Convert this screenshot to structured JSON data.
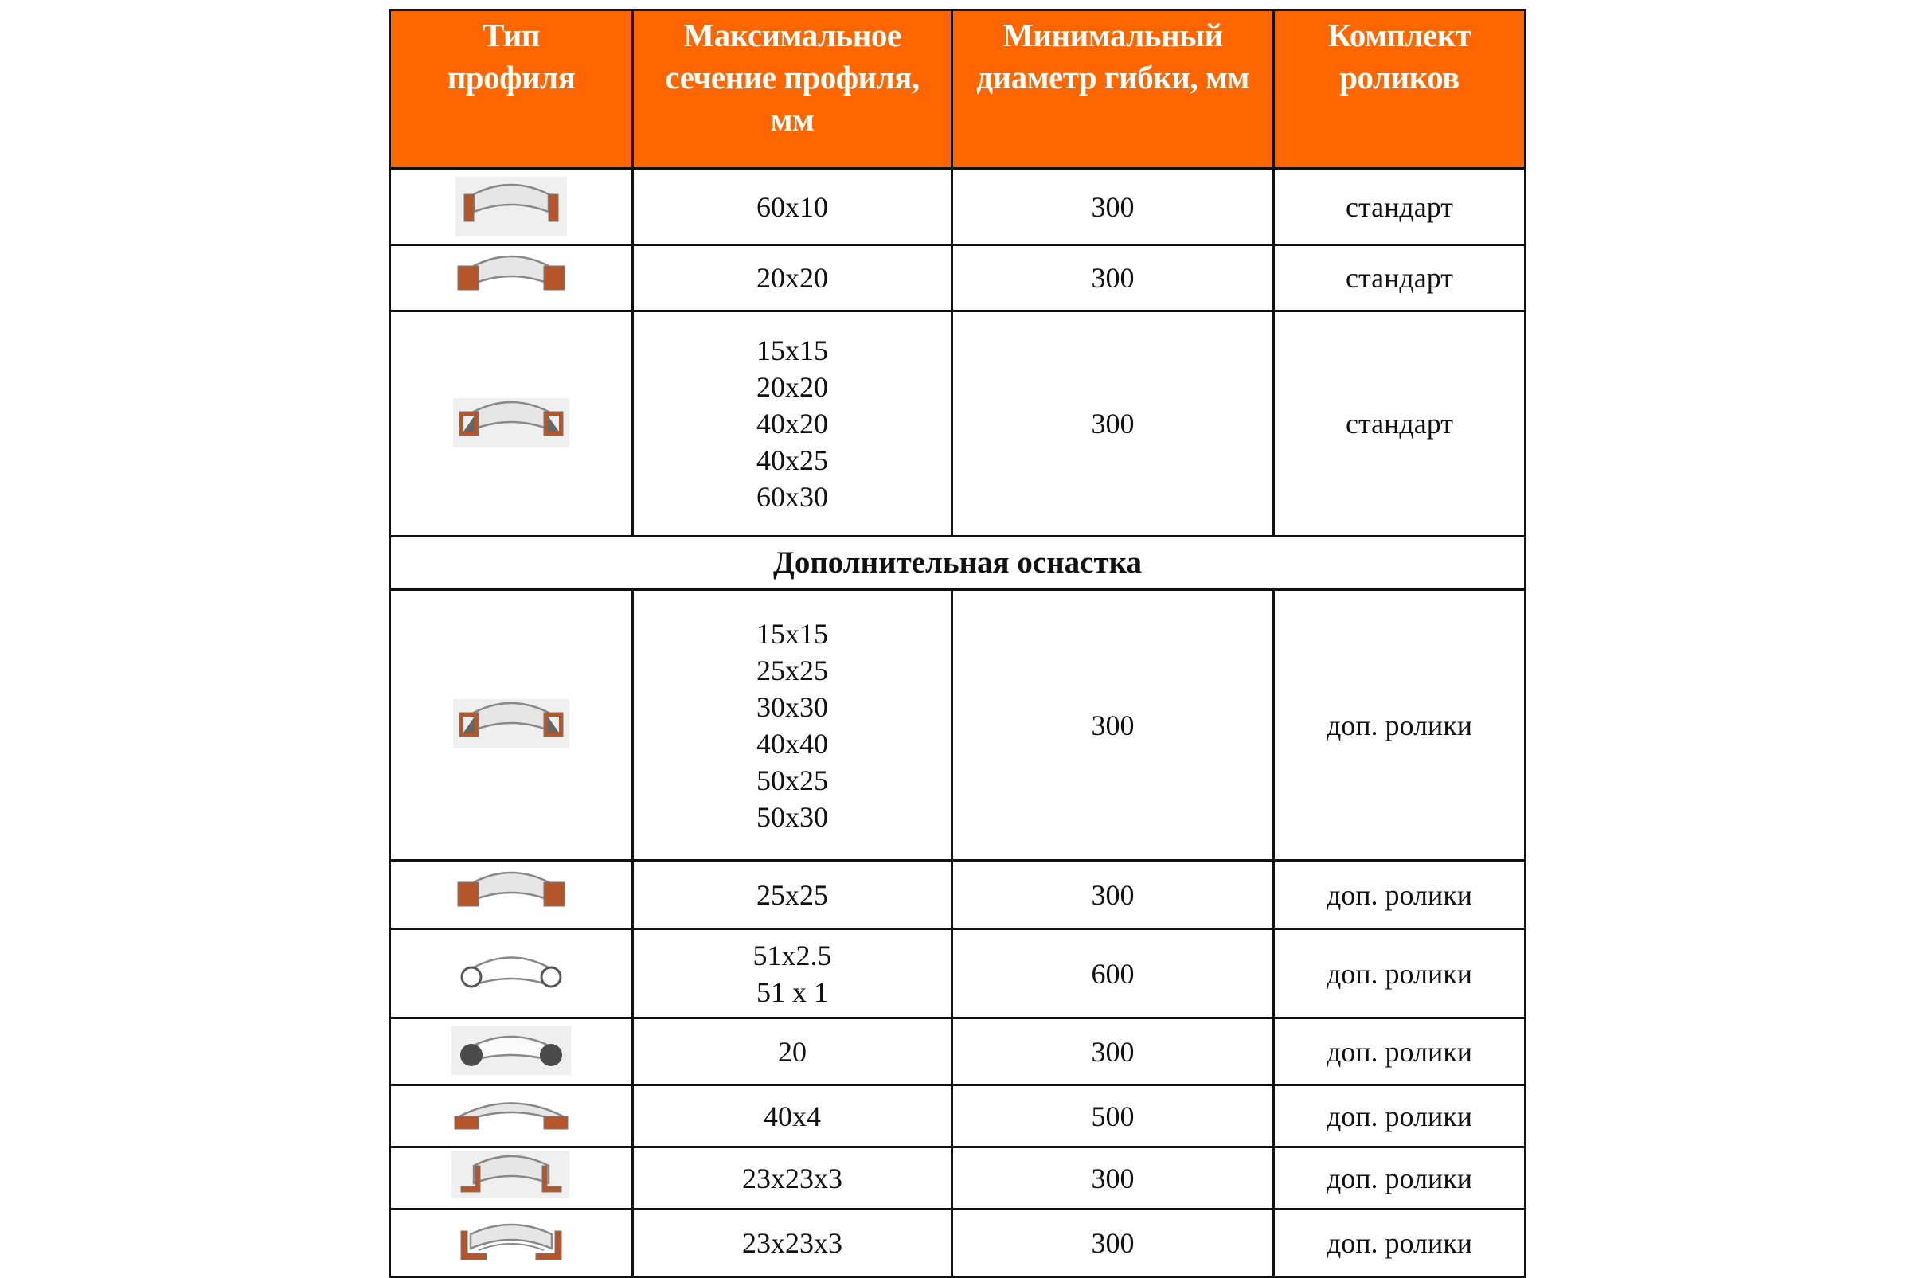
{
  "colors": {
    "header_bg": "#ff6600",
    "header_text": "#ffffff",
    "profile_fill": "#b5562a",
    "border": "#111111"
  },
  "table": {
    "headers": [
      "Тип профиля",
      "Максимальное сечение профиля, мм",
      "Минимальный диаметр гибки, мм",
      "Комплект роликов"
    ],
    "rows": [
      {
        "icon": "flat-bar-vertical-icon",
        "sections": [
          "60x10"
        ],
        "diameter": "300",
        "rollers": "стандарт"
      },
      {
        "icon": "square-bar-icon",
        "sections": [
          "20x20"
        ],
        "diameter": "300",
        "rollers": "стандарт"
      },
      {
        "icon": "square-tube-icon",
        "sections": [
          "15x15",
          "20x20",
          "40x20",
          "40x25",
          "60x30"
        ],
        "diameter": "300",
        "rollers": "стандарт"
      },
      {
        "section_title": "Дополнительная оснастка"
      },
      {
        "icon": "square-tube-icon",
        "sections": [
          "15x15",
          "25x25",
          "30x30",
          "40x40",
          "50x25",
          "50x30"
        ],
        "diameter": "300",
        "rollers": "доп. ролики"
      },
      {
        "icon": "square-bar-icon",
        "sections": [
          "25x25"
        ],
        "diameter": "300",
        "rollers": "доп. ролики"
      },
      {
        "icon": "round-tube-icon",
        "sections": [
          "51x2.5",
          "51 x 1"
        ],
        "diameter": "600",
        "rollers": "доп. ролики"
      },
      {
        "icon": "round-bar-icon",
        "sections": [
          "20"
        ],
        "diameter": "300",
        "rollers": "доп. ролики"
      },
      {
        "icon": "flat-bar-horizontal-icon",
        "sections": [
          "40x4"
        ],
        "diameter": "500",
        "rollers": "доп. ролики"
      },
      {
        "icon": "angle-out-icon",
        "sections": [
          "23x23x3"
        ],
        "diameter": "300",
        "rollers": "доп. ролики"
      },
      {
        "icon": "angle-in-icon",
        "sections": [
          "23x23x3"
        ],
        "diameter": "300",
        "rollers": "доп. ролики"
      }
    ]
  }
}
